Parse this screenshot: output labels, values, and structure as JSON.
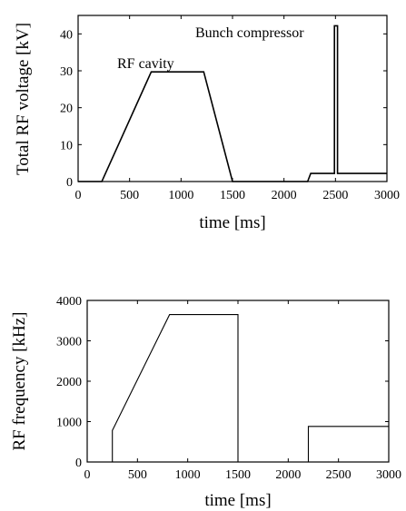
{
  "chart_data": [
    {
      "type": "line",
      "xlabel": "time [ms]",
      "ylabel": "Total RF voltage [kV]",
      "xlim": [
        0,
        3000
      ],
      "ylim": [
        0,
        45
      ],
      "x_ticks": [
        "0",
        "500",
        "1000",
        "1500",
        "2000",
        "2500",
        "3000"
      ],
      "y_ticks": [
        "0",
        "10",
        "20",
        "30",
        "40"
      ],
      "grid": false,
      "annotations": [
        "RF cavity",
        "Bunch compressor"
      ],
      "series": [
        {
          "x": [
            0,
            230,
            710,
            1220,
            1500,
            2230,
            2260,
            2490,
            2490,
            2520,
            2520,
            3000
          ],
          "y": [
            0,
            0,
            29.7,
            29.7,
            0,
            0,
            2.2,
            2.2,
            42.2,
            42.2,
            2.2,
            2.2
          ]
        }
      ]
    },
    {
      "type": "line",
      "xlabel": "time [ms]",
      "ylabel": "RF frequency [kHz]",
      "xlim": [
        0,
        3000
      ],
      "ylim": [
        0,
        4000
      ],
      "x_ticks": [
        "0",
        "500",
        "1000",
        "1500",
        "2000",
        "2500",
        "3000"
      ],
      "y_ticks": [
        "0",
        "1000",
        "2000",
        "3000",
        "4000"
      ],
      "grid": false,
      "series": [
        {
          "x": [
            0,
            250,
            250,
            820,
            1500,
            1500,
            2200,
            2200,
            3000
          ],
          "y": [
            0,
            0,
            780,
            3650,
            3650,
            0,
            0,
            880,
            880
          ]
        }
      ]
    }
  ]
}
